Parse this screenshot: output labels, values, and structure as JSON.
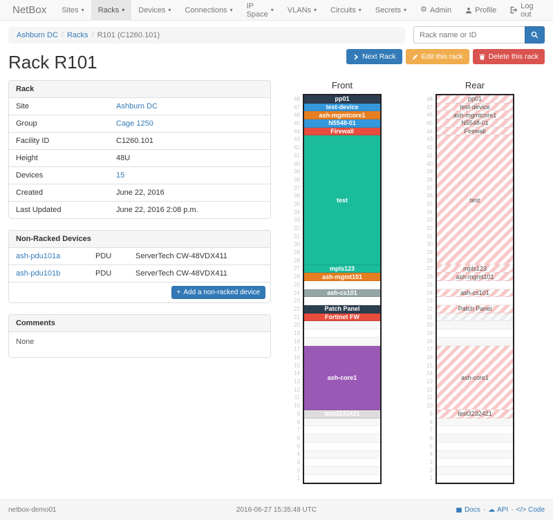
{
  "colors": {
    "primary": "#337ab7",
    "warning": "#f0ad4e",
    "danger": "#d9534f",
    "link": "#337ab7",
    "navbar_bg": "#f8f8f8",
    "hatch_pink": "#f9c8c8"
  },
  "navbar": {
    "brand": "NetBox",
    "items": [
      {
        "label": "Sites",
        "active": false
      },
      {
        "label": "Racks",
        "active": true
      },
      {
        "label": "Devices",
        "active": false
      },
      {
        "label": "Connections",
        "active": false
      },
      {
        "label": "IP Space",
        "active": false
      },
      {
        "label": "VLANs",
        "active": false
      },
      {
        "label": "Circuits",
        "active": false
      },
      {
        "label": "Secrets",
        "active": false
      }
    ],
    "right_items": [
      {
        "label": "Admin",
        "icon": "gear-icon"
      },
      {
        "label": "Profile",
        "icon": "user-icon"
      },
      {
        "label": "Log out",
        "icon": "logout-icon"
      }
    ]
  },
  "breadcrumb": {
    "items": [
      {
        "label": "Ashburn DC",
        "link": true
      },
      {
        "label": "Racks",
        "link": true
      },
      {
        "label": "R101 (C1260.101)",
        "link": false
      }
    ]
  },
  "search": {
    "placeholder": "Rack name or ID",
    "icon": "search-icon"
  },
  "page": {
    "title": "Rack R101",
    "actions": [
      {
        "label": "Next Rack",
        "style": "primary",
        "icon": "chevron-right-icon"
      },
      {
        "label": "Edit this rack",
        "style": "warning",
        "icon": "pencil-icon"
      },
      {
        "label": "Delete this rack",
        "style": "danger",
        "icon": "trash-icon"
      }
    ]
  },
  "rack_panel": {
    "title": "Rack",
    "rows": [
      {
        "label": "Site",
        "value": "Ashburn DC",
        "link": true
      },
      {
        "label": "Group",
        "value": "Cage 1250",
        "link": true
      },
      {
        "label": "Facility ID",
        "value": "C1260.101",
        "link": false
      },
      {
        "label": "Height",
        "value": "48U",
        "link": false
      },
      {
        "label": "Devices",
        "value": "15",
        "link": true
      },
      {
        "label": "Created",
        "value": "June 22, 2016",
        "link": false
      },
      {
        "label": "Last Updated",
        "value": "June 22, 2016 2:08 p.m.",
        "link": false
      }
    ]
  },
  "nonracked_panel": {
    "title": "Non-Racked Devices",
    "rows": [
      {
        "name": "ash-pdu101a",
        "role": "PDU",
        "type": "ServerTech CW-48VDX411"
      },
      {
        "name": "ash-pdu101b",
        "role": "PDU",
        "type": "ServerTech CW-48VDX411"
      }
    ],
    "add_button": {
      "label": "Add a non-racked device",
      "icon": "plus-icon"
    }
  },
  "comments_panel": {
    "title": "Comments",
    "body": "None"
  },
  "elevations": {
    "front": {
      "title": "Front",
      "top_unit": 48,
      "bottom_unit": 1,
      "slots": [
        {
          "u": 1,
          "label": "pp01",
          "color": "#2c3e50"
        },
        {
          "u": 1,
          "label": "test-device",
          "color": "#3498db"
        },
        {
          "u": 1,
          "label": "ash-mgmtcore1",
          "color": "#e67e22"
        },
        {
          "u": 1,
          "label": "N5548-01",
          "color": "#3498db"
        },
        {
          "u": 1,
          "label": "Firewall",
          "color": "#e74c3c"
        },
        {
          "u": 16,
          "label": "test",
          "color": "#1abc9c"
        },
        {
          "u": 1,
          "label": "mpls123",
          "color": "#1abc9c"
        },
        {
          "u": 1,
          "label": "ash-mgmt101",
          "color": "#e67e22"
        },
        {
          "u": 1,
          "empty": true
        },
        {
          "u": 1,
          "label": "ash-cs101",
          "color": "#95a5a6"
        },
        {
          "u": 1,
          "empty": true
        },
        {
          "u": 1,
          "label": "Patch Panel",
          "color": "#2c3e50"
        },
        {
          "u": 1,
          "label": "Fortinet FW",
          "color": "#e74c3c"
        },
        {
          "u": 3,
          "empty": true
        },
        {
          "u": 8,
          "label": "ash-core1",
          "color": "#9b59b6"
        },
        {
          "u": 1,
          "label": "test3232421",
          "color": "#dddddd",
          "text_color": "#ffffff"
        },
        {
          "u": 8,
          "empty": true
        }
      ]
    },
    "rear": {
      "title": "Rear",
      "top_unit": 48,
      "bottom_unit": 1,
      "slots": [
        {
          "u": 1,
          "label": "pp01",
          "hatch": "pink"
        },
        {
          "u": 1,
          "label": "test-device",
          "hatch": "pink"
        },
        {
          "u": 1,
          "label": "ash-mgmtcore1",
          "hatch": "pink"
        },
        {
          "u": 1,
          "label": "N5548-01",
          "hatch": "pink"
        },
        {
          "u": 1,
          "label": "Firewall",
          "hatch": "pink"
        },
        {
          "u": 16,
          "label": "test",
          "hatch": "pink"
        },
        {
          "u": 1,
          "label": "mpls123",
          "hatch": "pink"
        },
        {
          "u": 1,
          "label": "ash-mgmt101",
          "hatch": "pink"
        },
        {
          "u": 1,
          "empty": true
        },
        {
          "u": 1,
          "label": "ash-cs101",
          "hatch": "pink"
        },
        {
          "u": 1,
          "empty": true
        },
        {
          "u": 1,
          "label": "Patch Panel",
          "hatch": "pink"
        },
        {
          "u": 1,
          "label": "",
          "hatch": "gray"
        },
        {
          "u": 3,
          "empty": true
        },
        {
          "u": 8,
          "label": "ash-core1",
          "hatch": "pink"
        },
        {
          "u": 1,
          "label": "test3232421",
          "hatch": "pink"
        },
        {
          "u": 8,
          "empty": true
        }
      ]
    }
  },
  "footer": {
    "hostname": "netbox-demo01",
    "timestamp": "2016-06-27 15:35:48 UTC",
    "links": [
      {
        "label": "Docs",
        "icon": "book-icon"
      },
      {
        "label": "API",
        "icon": "cloud-icon"
      },
      {
        "label": "Code",
        "icon": "code-icon"
      }
    ]
  }
}
